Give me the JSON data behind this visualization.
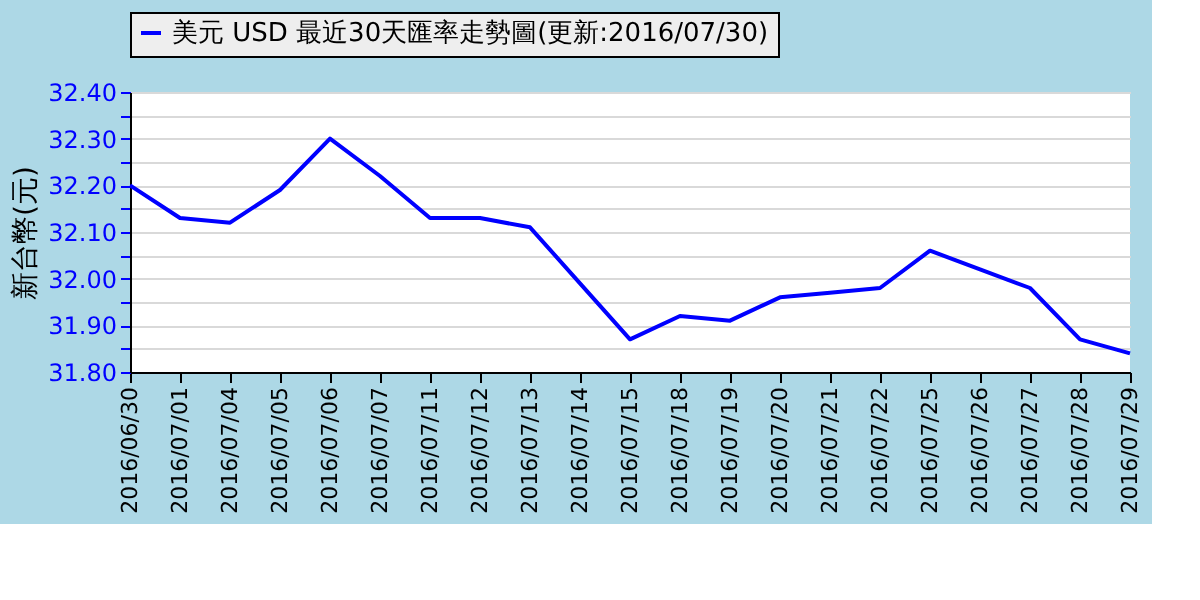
{
  "chart_data": {
    "type": "line",
    "categories": [
      "2016/06/30",
      "2016/07/01",
      "2016/07/04",
      "2016/07/05",
      "2016/07/06",
      "2016/07/07",
      "2016/07/11",
      "2016/07/12",
      "2016/07/13",
      "2016/07/14",
      "2016/07/15",
      "2016/07/18",
      "2016/07/19",
      "2016/07/20",
      "2016/07/21",
      "2016/07/22",
      "2016/07/25",
      "2016/07/26",
      "2016/07/27",
      "2016/07/28",
      "2016/07/29"
    ],
    "series": [
      {
        "name": "美元 USD 最近30天匯率走勢圖(更新:2016/07/30)",
        "color": "#0000ff",
        "values": [
          32.2,
          32.13,
          32.12,
          32.19,
          32.3,
          32.22,
          32.13,
          32.13,
          32.11,
          31.99,
          31.87,
          31.92,
          31.91,
          31.96,
          31.97,
          31.98,
          32.06,
          32.02,
          31.98,
          31.87,
          31.84
        ]
      }
    ],
    "ylabel": "新台幣(元)",
    "ylim": [
      31.8,
      32.4
    ],
    "yticks": [
      {
        "value": 31.8,
        "label": "31.80"
      },
      {
        "value": 31.85,
        "label": null
      },
      {
        "value": 31.9,
        "label": "31.90"
      },
      {
        "value": 31.95,
        "label": null
      },
      {
        "value": 32.0,
        "label": "32.00"
      },
      {
        "value": 32.05,
        "label": null
      },
      {
        "value": 32.1,
        "label": "32.10"
      },
      {
        "value": 32.15,
        "label": null
      },
      {
        "value": 32.2,
        "label": "32.20"
      },
      {
        "value": 32.25,
        "label": null
      },
      {
        "value": 32.3,
        "label": "32.30"
      },
      {
        "value": 32.35,
        "label": null
      },
      {
        "value": 32.4,
        "label": "32.40"
      }
    ],
    "grid": "y",
    "legend": "top",
    "marker": "none",
    "line_style": "solid"
  }
}
